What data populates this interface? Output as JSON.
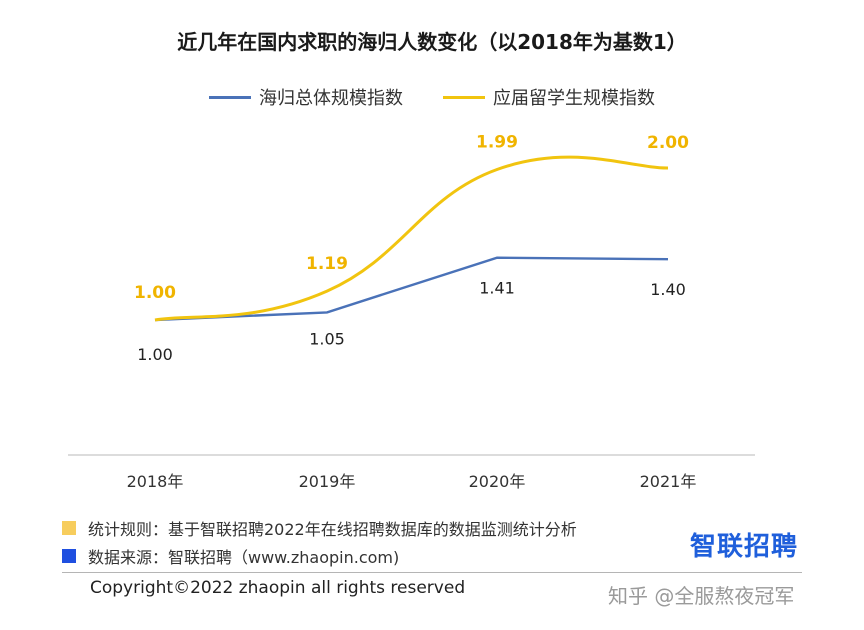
{
  "colors": {
    "blue": "#4a72b8",
    "yellow": "#f1c40f",
    "yellow_label": "#f0b400",
    "note_yellow": "#f7cd5d",
    "note_blue": "#1f4fe0",
    "brand_blue": "#1f5fdb"
  },
  "chart_data": {
    "type": "line",
    "title": "近几年在国内求职的海归人数变化（以2018年为基数1）",
    "categories": [
      "2018年",
      "2019年",
      "2020年",
      "2021年"
    ],
    "series": [
      {
        "name": "海归总体规模指数",
        "values": [
          1.0,
          1.05,
          1.41,
          1.4
        ],
        "labels": [
          "1.00",
          "1.05",
          "1.41",
          "1.40"
        ],
        "color": "#4a72b8"
      },
      {
        "name": "应届留学生规模指数",
        "values": [
          1.0,
          1.19,
          1.99,
          2.0
        ],
        "labels": [
          "1.00",
          "1.19",
          "1.99",
          "2.00"
        ],
        "color": "#f1c40f"
      }
    ],
    "legend_position": "top-center",
    "grid": false
  },
  "notes": {
    "rule": "统计规则：基于智联招聘2022年在线招聘数据库的数据监测统计分析",
    "source": "数据来源：智联招聘（www.zhaopin.com)"
  },
  "brand": "智联招聘",
  "copyright": "Copyright©2022 zhaopin all rights reserved",
  "watermark": "知乎 @全服熬夜冠军"
}
